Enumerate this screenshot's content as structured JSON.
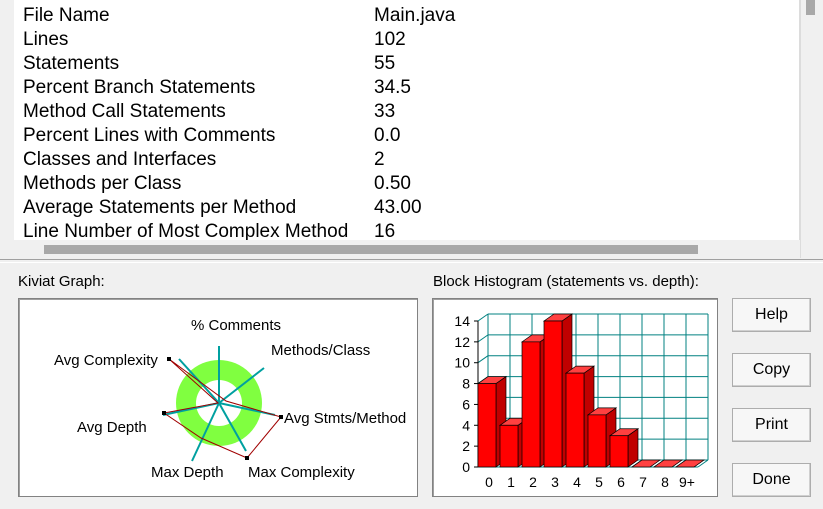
{
  "metrics": [
    {
      "label": "File Name",
      "value": "Main.java"
    },
    {
      "label": "Lines",
      "value": "102"
    },
    {
      "label": "Statements",
      "value": "55"
    },
    {
      "label": "Percent Branch Statements",
      "value": "34.5"
    },
    {
      "label": "Method Call Statements",
      "value": "33"
    },
    {
      "label": "Percent Lines with Comments",
      "value": "0.0"
    },
    {
      "label": "Classes and Interfaces",
      "value": "2"
    },
    {
      "label": "Methods per Class",
      "value": "0.50"
    },
    {
      "label": "Average Statements per Method",
      "value": "43.00"
    },
    {
      "label": "Line Number of Most Complex Method",
      "value": "16"
    }
  ],
  "kiviat": {
    "caption": "Kiviat Graph:",
    "axes": [
      "% Comments",
      "Methods/Class",
      "Avg Stmts/Method",
      "Max Complexity",
      "Max Depth",
      "Avg Depth",
      "Avg Complexity"
    ]
  },
  "histogram": {
    "caption": "Block Histogram (statements vs. depth):"
  },
  "buttons": {
    "help": "Help",
    "copy": "Copy",
    "print": "Print",
    "done": "Done"
  },
  "chart_data": {
    "type": "bar",
    "title": "Block Histogram (statements vs. depth):",
    "categories": [
      "0",
      "1",
      "2",
      "3",
      "4",
      "5",
      "6",
      "7",
      "8",
      "9+"
    ],
    "values": [
      8,
      4,
      12,
      14,
      9,
      5,
      3,
      0,
      0,
      0
    ],
    "ylim": [
      0,
      14
    ],
    "yticks": [
      "0",
      "2",
      "4",
      "6",
      "8",
      "10",
      "12",
      "14"
    ],
    "grid": true,
    "bar_color": "#ff0000"
  }
}
